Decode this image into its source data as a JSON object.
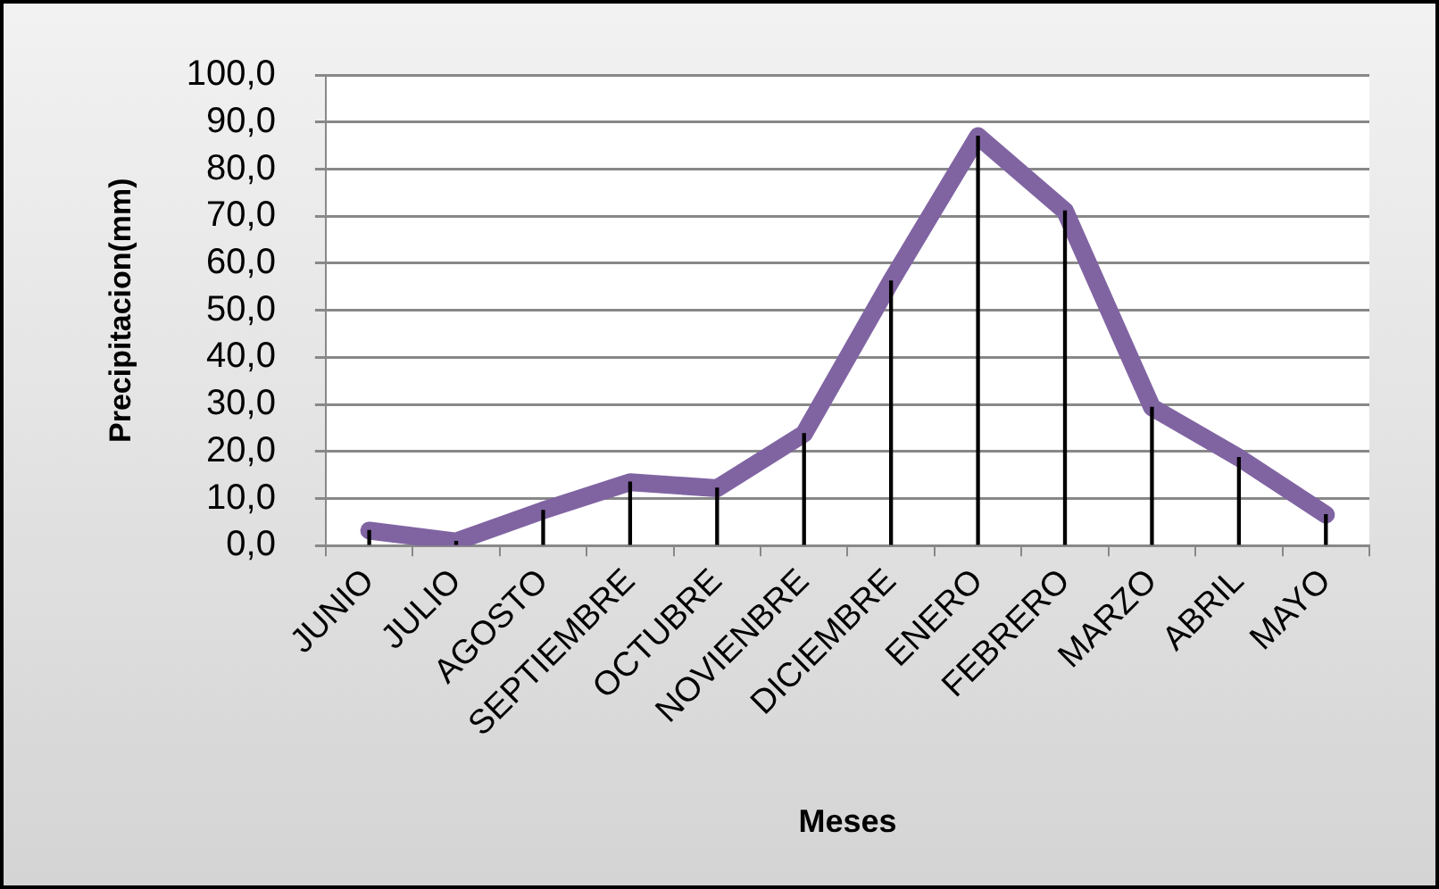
{
  "chart_data": {
    "type": "line",
    "xlabel": "Meses",
    "ylabel": "Precipitacion(mm)",
    "categories": [
      "JUNIO",
      "JULIO",
      "AGOSTO",
      "SEPTIEMBRE",
      "OCTUBRE",
      "NOVIENBRE",
      "DICIEMBRE",
      "ENERO",
      "FEBRERO",
      "MARZO",
      "ABRIL",
      "MAYO"
    ],
    "series": [
      {
        "type": "bar",
        "color": "#000000",
        "values": [
          3.2,
          0.9,
          7.5,
          13.5,
          12.2,
          23.8,
          56.2,
          87.0,
          71.1,
          29.4,
          18.7,
          6.6
        ]
      },
      {
        "color": "#8064a2",
        "values": [
          3.2,
          0.9,
          7.5,
          13.5,
          12.2,
          23.8,
          56.2,
          87.0,
          71.1,
          29.4,
          18.7,
          6.6
        ]
      }
    ],
    "ylim": [
      0,
      100
    ],
    "yticks": [
      {
        "value": 0,
        "label": "0,0"
      },
      {
        "value": 10,
        "label": "10,0"
      },
      {
        "value": 20,
        "label": "20,0"
      },
      {
        "value": 30,
        "label": "30,0"
      },
      {
        "value": 40,
        "label": "40,0"
      },
      {
        "value": 50,
        "label": "50,0"
      },
      {
        "value": 60,
        "label": "60,0"
      },
      {
        "value": 70,
        "label": "70,0"
      },
      {
        "value": 80,
        "label": "80,0"
      },
      {
        "value": 90,
        "label": "90,0"
      },
      {
        "value": 100,
        "label": "100,0"
      }
    ],
    "grid": "y",
    "legend": false,
    "marker": "none",
    "line_style": "solid"
  }
}
